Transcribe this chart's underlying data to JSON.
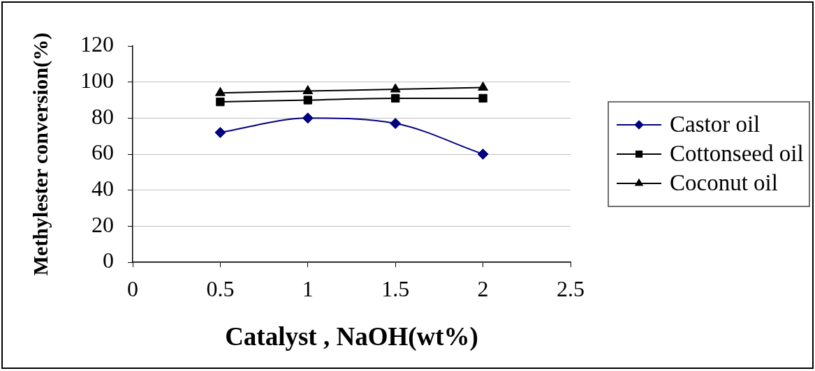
{
  "chart_data": {
    "type": "line",
    "xlabel": "Catalyst , NaOH(wt%)",
    "ylabel": "Methylester conversion(%)",
    "x": [
      0.5,
      1,
      1.5,
      2
    ],
    "series": [
      {
        "name": "Castor oil",
        "color": "#000080",
        "marker": "diamond",
        "values": [
          72,
          80,
          77,
          60
        ]
      },
      {
        "name": "Cottonseed oil",
        "color": "#000000",
        "marker": "square",
        "values": [
          89,
          90,
          91,
          91
        ]
      },
      {
        "name": "Coconut oil",
        "color": "#000000",
        "marker": "triangle",
        "values": [
          94,
          95,
          96,
          97
        ]
      }
    ],
    "xlim": [
      0,
      2.5
    ],
    "xticks": [
      0,
      0.5,
      1,
      1.5,
      2,
      2.5
    ],
    "ylim": [
      0,
      120
    ],
    "yticks": [
      0,
      20,
      40,
      60,
      80,
      100,
      120
    ],
    "grid": "y",
    "legend": "right",
    "line_style": "solid"
  }
}
